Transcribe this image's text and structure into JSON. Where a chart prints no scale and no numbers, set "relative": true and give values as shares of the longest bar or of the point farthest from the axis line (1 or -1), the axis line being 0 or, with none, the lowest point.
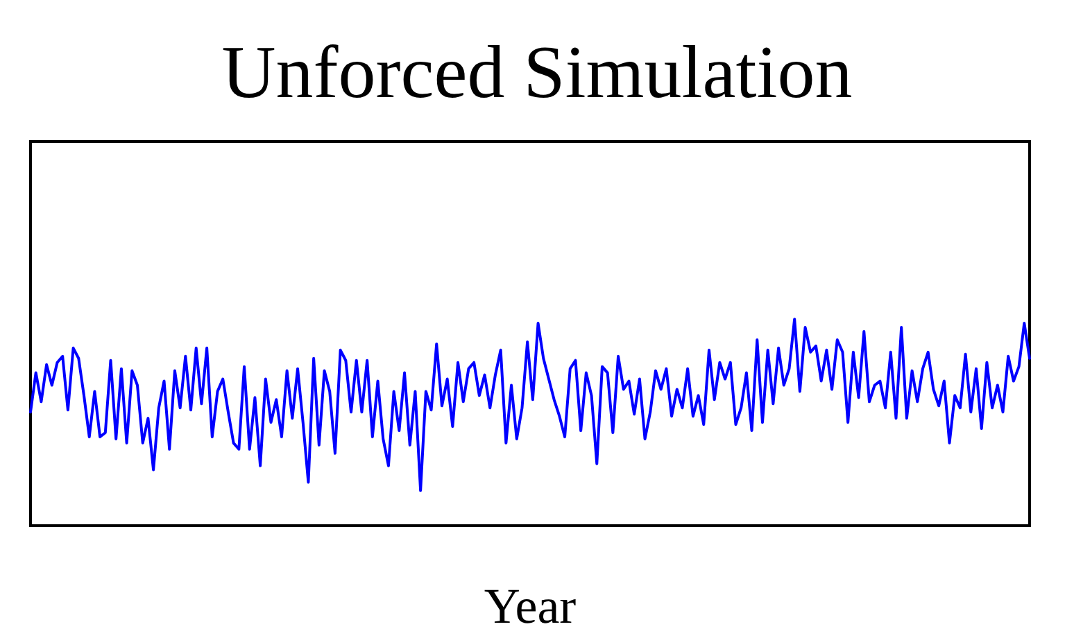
{
  "chart_data": {
    "type": "line",
    "title": "Unforced Simulation",
    "xlabel": "Year",
    "relative": true,
    "grid": false,
    "line_style": "solid",
    "categories": [
      null,
      null,
      null,
      null,
      null,
      null,
      null,
      null,
      null,
      null,
      null,
      null,
      null,
      null,
      null,
      null,
      null,
      null,
      null,
      null,
      null,
      null,
      null,
      null,
      null,
      null,
      null,
      null,
      null,
      null,
      null,
      null,
      null,
      null,
      null,
      null,
      null,
      null,
      null,
      null,
      null,
      null,
      null,
      null,
      null,
      null,
      null,
      null,
      null,
      null,
      null,
      null,
      null,
      null,
      null,
      null,
      null,
      null,
      null,
      null,
      null,
      null,
      null,
      null,
      null,
      null,
      null,
      null,
      null,
      null,
      null,
      null,
      null,
      null,
      null,
      null,
      null,
      null,
      null,
      null,
      null,
      null,
      null,
      null,
      null,
      null,
      null,
      null,
      null,
      null,
      null,
      null,
      null,
      null,
      null,
      null,
      null,
      null,
      null,
      null,
      null,
      null,
      null,
      null,
      null,
      null,
      null,
      null,
      null,
      null,
      null,
      null,
      null,
      null,
      null,
      null,
      null,
      null,
      null,
      null,
      null,
      null,
      null,
      null,
      null,
      null,
      null,
      null,
      null,
      null,
      null,
      null,
      null,
      null,
      null,
      null,
      null,
      null,
      null,
      null,
      null,
      null,
      null,
      null,
      null,
      null,
      null,
      null,
      null,
      null,
      null,
      null,
      null,
      null,
      null,
      null,
      null,
      null,
      null,
      null,
      null,
      null,
      null,
      null,
      null,
      null,
      null,
      null,
      null,
      null,
      null,
      null,
      null,
      null,
      null,
      null,
      null,
      null,
      null,
      null,
      null,
      null,
      null,
      null,
      null,
      null,
      null,
      null
    ],
    "series": [
      {
        "color": "#0000ff",
        "values": [
          0.55,
          0.74,
          0.6,
          0.78,
          0.68,
          0.79,
          0.82,
          0.56,
          0.86,
          0.81,
          0.63,
          0.43,
          0.65,
          0.43,
          0.45,
          0.8,
          0.42,
          0.76,
          0.4,
          0.75,
          0.68,
          0.4,
          0.52,
          0.27,
          0.57,
          0.7,
          0.37,
          0.75,
          0.57,
          0.82,
          0.56,
          0.86,
          0.59,
          0.86,
          0.43,
          0.65,
          0.71,
          0.55,
          0.4,
          0.37,
          0.77,
          0.37,
          0.62,
          0.29,
          0.71,
          0.5,
          0.61,
          0.43,
          0.75,
          0.52,
          0.76,
          0.5,
          0.21,
          0.81,
          0.39,
          0.75,
          0.65,
          0.35,
          0.85,
          0.8,
          0.55,
          0.8,
          0.55,
          0.8,
          0.43,
          0.7,
          0.42,
          0.29,
          0.65,
          0.46,
          0.74,
          0.39,
          0.65,
          0.17,
          0.65,
          0.56,
          0.88,
          0.58,
          0.71,
          0.48,
          0.79,
          0.6,
          0.76,
          0.79,
          0.63,
          0.73,
          0.57,
          0.73,
          0.85,
          0.4,
          0.68,
          0.42,
          0.57,
          0.89,
          0.61,
          0.98,
          0.81,
          0.71,
          0.61,
          0.53,
          0.43,
          0.76,
          0.8,
          0.46,
          0.74,
          0.63,
          0.3,
          0.77,
          0.74,
          0.45,
          0.82,
          0.66,
          0.7,
          0.54,
          0.71,
          0.42,
          0.55,
          0.75,
          0.66,
          0.76,
          0.53,
          0.66,
          0.57,
          0.76,
          0.53,
          0.63,
          0.49,
          0.85,
          0.61,
          0.79,
          0.71,
          0.79,
          0.49,
          0.57,
          0.74,
          0.46,
          0.9,
          0.5,
          0.85,
          0.59,
          0.86,
          0.68,
          0.76,
          1,
          0.65,
          0.96,
          0.84,
          0.87,
          0.7,
          0.85,
          0.66,
          0.9,
          0.84,
          0.5,
          0.84,
          0.62,
          0.94,
          0.6,
          0.68,
          0.7,
          0.57,
          0.84,
          0.52,
          0.96,
          0.52,
          0.75,
          0.6,
          0.76,
          0.84,
          0.66,
          0.58,
          0.7,
          0.4,
          0.63,
          0.57,
          0.83,
          0.55,
          0.76,
          0.47,
          0.79,
          0.57,
          0.68,
          0.55,
          0.82,
          0.7,
          0.77,
          0.98,
          0.81
        ]
      }
    ]
  }
}
